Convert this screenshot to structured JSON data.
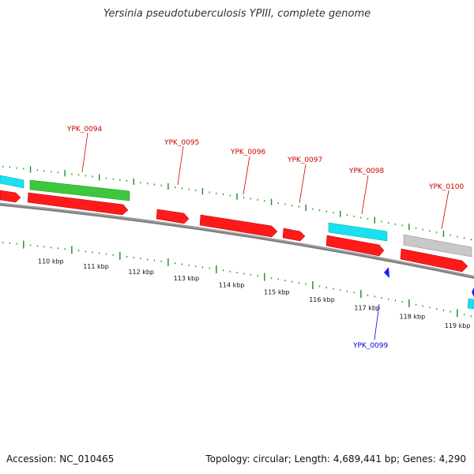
{
  "title": "Yersinia pseudotuberculosis YPIII, complete genome",
  "footer": {
    "accession": "Accession: NC_010465",
    "summary": "Topology: circular; Length: 4,689,441 bp; Genes: 4,290"
  },
  "colors": {
    "cds": "#ff1a1a",
    "cds_dark": "#b30000",
    "cyan_feature": "#1ae0f0",
    "green_feature": "#3cc83c",
    "gray_feature": "#c8c8c8",
    "backbone": "#808080",
    "tick": "#1a8c1a",
    "label_red": "#cc0000",
    "label_blue": "#0000cc"
  },
  "scale": {
    "labels": [
      "110 kbp",
      "111 kbp",
      "112 kbp",
      "113 kbp",
      "114 kbp",
      "115 kbp",
      "116 kbp",
      "117 kbp",
      "118 kbp",
      "119 kbp"
    ]
  },
  "gene_labels": [
    {
      "text": "YPK_0094",
      "color": "red"
    },
    {
      "text": "YPK_0095",
      "color": "red"
    },
    {
      "text": "YPK_0096",
      "color": "red"
    },
    {
      "text": "YPK_0097",
      "color": "red"
    },
    {
      "text": "YPK_0098",
      "color": "red"
    },
    {
      "text": "YPK_0100",
      "color": "red"
    },
    {
      "text": "YPK_0099",
      "color": "blue"
    }
  ]
}
